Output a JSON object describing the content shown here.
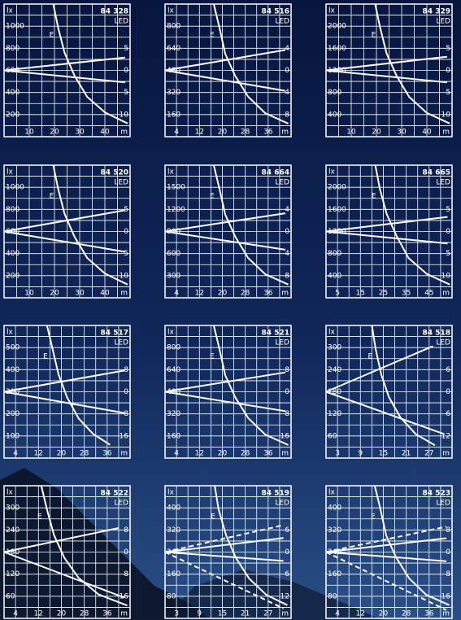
{
  "chart_data": [
    {
      "type": "line",
      "title": "84 328",
      "subtitle": "LED",
      "ylabel": "lx",
      "xlabel": "m",
      "grid": "minor",
      "xlim": [
        0,
        50
      ],
      "xticks": [
        10,
        20,
        30,
        40
      ],
      "ylim": [
        0,
        1200
      ],
      "yticks": [
        200,
        400,
        600,
        800,
        1000
      ],
      "y2lim": [
        -15,
        15
      ],
      "y2ticks": [
        5,
        0,
        {
          "value": -5,
          "label": "5"
        },
        {
          "value": -10,
          "label": "10"
        }
      ],
      "series": [
        {
          "name": "E",
          "color": "#ffffff",
          "x": [
            19.5,
            21.5,
            24,
            28,
            33,
            40,
            49
          ],
          "values": [
            1200,
            980,
            760,
            550,
            360,
            220,
            120
          ]
        },
        {
          "color": "#ffffff",
          "axis": "y2",
          "x": [
            0,
            48
          ],
          "values": [
            0,
            2.9
          ]
        },
        {
          "color": "#ffffff",
          "axis": "y2",
          "x": [
            0,
            48
          ],
          "values": [
            0,
            -2.7
          ]
        }
      ]
    },
    {
      "type": "line",
      "title": "84 516",
      "subtitle": "LED",
      "ylabel": "lx",
      "xlabel": "m",
      "grid": "minor",
      "xlim": [
        0,
        44
      ],
      "xticks": [
        4,
        12,
        20,
        28,
        36
      ],
      "ylim": [
        0,
        960
      ],
      "yticks": [
        160,
        320,
        480,
        640,
        800
      ],
      "y2lim": [
        -12,
        12
      ],
      "y2ticks": [
        4,
        0,
        {
          "value": -4,
          "label": "4"
        },
        {
          "value": -8,
          "label": "8"
        }
      ],
      "series": [
        {
          "name": "E",
          "color": "#ffffff",
          "x": [
            17,
            19,
            21,
            24.5,
            29,
            35,
            43
          ],
          "values": [
            960,
            790,
            600,
            440,
            290,
            170,
            95
          ]
        },
        {
          "color": "#ffffff",
          "axis": "y2",
          "x": [
            0,
            42
          ],
          "values": [
            0,
            3.7
          ]
        },
        {
          "color": "#ffffff",
          "axis": "y2",
          "x": [
            0,
            42
          ],
          "values": [
            0,
            -3.7
          ]
        }
      ]
    },
    {
      "type": "line",
      "title": "84 329",
      "subtitle": "LED",
      "ylabel": "lx",
      "xlabel": "m",
      "grid": "minor",
      "xlim": [
        0,
        50
      ],
      "xticks": [
        10,
        20,
        30,
        40
      ],
      "ylim": [
        0,
        2400
      ],
      "yticks": [
        400,
        800,
        1200,
        1600,
        2000
      ],
      "y2lim": [
        -15,
        15
      ],
      "y2ticks": [
        5,
        0,
        {
          "value": -5,
          "label": "5"
        },
        {
          "value": -10,
          "label": "10"
        }
      ],
      "series": [
        {
          "name": "E",
          "color": "#ffffff",
          "x": [
            19.5,
            21.5,
            24,
            28,
            33,
            40,
            49
          ],
          "values": [
            2400,
            1970,
            1510,
            1100,
            720,
            430,
            240
          ]
        },
        {
          "color": "#ffffff",
          "axis": "y2",
          "x": [
            0,
            48
          ],
          "values": [
            0,
            3.1
          ]
        },
        {
          "color": "#ffffff",
          "axis": "y2",
          "x": [
            0,
            48
          ],
          "values": [
            0,
            -2.7
          ]
        }
      ]
    },
    {
      "type": "line",
      "title": "84 520",
      "subtitle": "LED",
      "ylabel": "lx",
      "xlabel": "m",
      "grid": "minor",
      "xlim": [
        0,
        50
      ],
      "xticks": [
        10,
        20,
        30,
        40
      ],
      "ylim": [
        0,
        1200
      ],
      "yticks": [
        200,
        400,
        600,
        800,
        1000
      ],
      "y2lim": [
        -15,
        15
      ],
      "y2ticks": [
        5,
        0,
        {
          "value": -5,
          "label": "5"
        },
        {
          "value": -10,
          "label": "10"
        }
      ],
      "series": [
        {
          "name": "E",
          "color": "#ffffff",
          "x": [
            19.5,
            21.5,
            24,
            28,
            33,
            40,
            49
          ],
          "values": [
            1200,
            980,
            760,
            550,
            360,
            220,
            120
          ]
        },
        {
          "color": "#ffffff",
          "axis": "y2",
          "x": [
            0,
            48
          ],
          "values": [
            0,
            4.8
          ]
        },
        {
          "color": "#ffffff",
          "axis": "y2",
          "x": [
            0,
            48
          ],
          "values": [
            0,
            -4.6
          ]
        }
      ]
    },
    {
      "type": "line",
      "title": "84 664",
      "subtitle": "LED",
      "ylabel": "lx",
      "xlabel": "m",
      "grid": "minor",
      "xlim": [
        0,
        44
      ],
      "xticks": [
        4,
        12,
        20,
        28,
        36
      ],
      "ylim": [
        0,
        1800
      ],
      "yticks": [
        300,
        600,
        900,
        1200,
        1500
      ],
      "y2lim": [
        -12,
        12
      ],
      "y2ticks": [
        4,
        0,
        {
          "value": -4,
          "label": "4"
        },
        {
          "value": -8,
          "label": "8"
        }
      ],
      "series": [
        {
          "name": "E",
          "color": "#ffffff",
          "x": [
            17,
            19,
            21,
            24.5,
            29,
            35,
            43
          ],
          "values": [
            1800,
            1480,
            1130,
            830,
            540,
            320,
            180
          ]
        },
        {
          "color": "#ffffff",
          "axis": "y2",
          "x": [
            0,
            42
          ],
          "values": [
            0,
            3.3
          ]
        },
        {
          "color": "#ffffff",
          "axis": "y2",
          "x": [
            0,
            42
          ],
          "values": [
            0,
            -3.3
          ]
        }
      ]
    },
    {
      "type": "line",
      "title": "84 665",
      "subtitle": "LED",
      "ylabel": "lx",
      "xlabel": "m",
      "grid": "minor",
      "xlim": [
        0,
        55
      ],
      "xticks": [
        5,
        15,
        25,
        35,
        45
      ],
      "ylim": [
        0,
        2400
      ],
      "yticks": [
        400,
        800,
        1200,
        1600,
        2000
      ],
      "y2lim": [
        -15,
        15
      ],
      "y2ticks": [
        5,
        0,
        {
          "value": -5,
          "label": "5"
        },
        {
          "value": -10,
          "label": "10"
        }
      ],
      "series": [
        {
          "name": "E",
          "color": "#ffffff",
          "x": [
            21.5,
            23.5,
            26.5,
            31,
            36,
            44,
            54
          ],
          "values": [
            2400,
            1970,
            1510,
            1100,
            720,
            430,
            240
          ]
        },
        {
          "color": "#ffffff",
          "axis": "y2",
          "x": [
            0,
            53
          ],
          "values": [
            0,
            3.3
          ]
        },
        {
          "color": "#ffffff",
          "axis": "y2",
          "x": [
            0,
            53
          ],
          "values": [
            0,
            -2.7
          ]
        }
      ]
    },
    {
      "type": "line",
      "title": "84 517",
      "subtitle": "LED",
      "ylabel": "lx",
      "xlabel": "m",
      "grid": "minor",
      "xlim": [
        0,
        44
      ],
      "xticks": [
        4,
        12,
        20,
        28,
        36
      ],
      "ylim": [
        0,
        600
      ],
      "yticks": [
        100,
        200,
        300,
        400,
        500
      ],
      "y2lim": [
        -24,
        24
      ],
      "y2ticks": [
        8,
        0,
        {
          "value": -8,
          "label": "8"
        },
        {
          "value": -16,
          "label": "16"
        }
      ],
      "series": [
        {
          "name": "E",
          "color": "#ffffff",
          "x": [
            15,
            17,
            19,
            22,
            26,
            31,
            37
          ],
          "values": [
            600,
            490,
            380,
            275,
            180,
            110,
            60
          ]
        },
        {
          "color": "#ffffff",
          "axis": "y2",
          "x": [
            0,
            42
          ],
          "values": [
            0,
            7.7
          ]
        },
        {
          "color": "#ffffff",
          "axis": "y2",
          "x": [
            0,
            42
          ],
          "values": [
            0,
            -7.7
          ]
        }
      ]
    },
    {
      "type": "line",
      "title": "84 521",
      "subtitle": "LED",
      "ylabel": "lx",
      "xlabel": "m",
      "grid": "minor",
      "xlim": [
        0,
        44
      ],
      "xticks": [
        4,
        12,
        20,
        28,
        36
      ],
      "ylim": [
        0,
        960
      ],
      "yticks": [
        160,
        320,
        480,
        640,
        800
      ],
      "y2lim": [
        -24,
        24
      ],
      "y2ticks": [
        8,
        0,
        {
          "value": -8,
          "label": "8"
        },
        {
          "value": -16,
          "label": "16"
        }
      ],
      "series": [
        {
          "name": "E",
          "color": "#ffffff",
          "x": [
            17,
            19,
            21,
            24.5,
            29,
            35,
            43
          ],
          "values": [
            960,
            790,
            600,
            440,
            290,
            170,
            95
          ]
        },
        {
          "color": "#ffffff",
          "axis": "y2",
          "x": [
            0,
            42
          ],
          "values": [
            0,
            7
          ]
        },
        {
          "color": "#ffffff",
          "axis": "y2",
          "x": [
            0,
            42
          ],
          "values": [
            0,
            -7
          ]
        }
      ]
    },
    {
      "type": "line",
      "title": "84 518",
      "subtitle": "LED",
      "ylabel": "lx",
      "xlabel": "m",
      "grid": "minor",
      "xlim": [
        0,
        33
      ],
      "xticks": [
        3,
        9,
        15,
        21,
        27
      ],
      "ylim": [
        0,
        360
      ],
      "yticks": [
        60,
        120,
        180,
        240,
        300
      ],
      "y2lim": [
        -18,
        18
      ],
      "y2ticks": [
        6,
        0,
        {
          "value": -6,
          "label": "6"
        },
        {
          "value": -12,
          "label": "12"
        }
      ],
      "series": [
        {
          "name": "E",
          "color": "#ffffff",
          "x": [
            12,
            13,
            14.5,
            16.5,
            19.5,
            23.5,
            28.5
          ],
          "values": [
            360,
            295,
            225,
            165,
            110,
            65,
            35
          ]
        },
        {
          "color": "#ffffff",
          "axis": "y2",
          "x": [
            0,
            28
          ],
          "values": [
            0,
            12.4
          ]
        },
        {
          "color": "#ffffff",
          "axis": "y2",
          "x": [
            0,
            31
          ],
          "values": [
            0,
            -11.5
          ]
        }
      ]
    },
    {
      "type": "line",
      "title": "84 522",
      "subtitle": "LED",
      "ylabel": "lx",
      "xlabel": "m",
      "grid": "minor",
      "xlim": [
        0,
        44
      ],
      "xticks": [
        4,
        12,
        20,
        28,
        36
      ],
      "ylim": [
        0,
        360
      ],
      "yticks": [
        60,
        120,
        180,
        240,
        300
      ],
      "y2lim": [
        -24,
        24
      ],
      "y2ticks": [
        8,
        0,
        {
          "value": -8,
          "label": "8"
        },
        {
          "value": -16,
          "label": "16"
        }
      ],
      "series": [
        {
          "name": "E",
          "color": "#ffffff",
          "x": [
            13,
            15,
            17.5,
            21,
            26,
            33,
            43
          ],
          "values": [
            360,
            295,
            225,
            165,
            110,
            65,
            35
          ]
        },
        {
          "color": "#ffffff",
          "axis": "y2",
          "x": [
            0,
            40
          ],
          "values": [
            0,
            8.7
          ]
        },
        {
          "color": "#ffffff",
          "axis": "y2",
          "x": [
            0,
            42
          ],
          "values": [
            0,
            -16.5
          ]
        }
      ]
    },
    {
      "type": "line",
      "title": "84 519",
      "subtitle": "LED",
      "ylabel": "lx",
      "xlabel": "m",
      "grid": "minor",
      "xlim": [
        0,
        33
      ],
      "xticks": [
        3,
        9,
        15,
        21,
        27
      ],
      "ylim": [
        0,
        480
      ],
      "yticks": [
        80,
        160,
        240,
        320,
        400
      ],
      "y2lim": [
        -18,
        18
      ],
      "y2ticks": [
        6,
        0,
        {
          "value": -6,
          "label": "6"
        },
        {
          "value": -12,
          "label": "12"
        }
      ],
      "series": [
        {
          "name": "E",
          "color": "#ffffff",
          "x": [
            13,
            14,
            16,
            18.5,
            22,
            26.5,
            32
          ],
          "values": [
            480,
            395,
            300,
            220,
            145,
            85,
            48
          ]
        },
        {
          "color": "#ffffff",
          "axis": "y2",
          "x": [
            0,
            31
          ],
          "values": [
            0,
            3.8
          ]
        },
        {
          "color": "#ffffff",
          "axis": "y2",
          "x": [
            0,
            31
          ],
          "values": [
            0,
            -2.4
          ]
        },
        {
          "color": "#ffffff",
          "axis": "y2",
          "dash": true,
          "x": [
            0,
            31
          ],
          "values": [
            0,
            7.3
          ]
        },
        {
          "color": "#ffffff",
          "axis": "y2",
          "dash": true,
          "x": [
            0,
            31
          ],
          "values": [
            0,
            -15.3
          ]
        }
      ]
    },
    {
      "type": "line",
      "title": "84 523",
      "subtitle": "LED",
      "ylabel": "lx",
      "xlabel": "m",
      "grid": "minor",
      "xlim": [
        0,
        44
      ],
      "xticks": [
        4,
        12,
        20,
        28,
        36
      ],
      "ylim": [
        0,
        480
      ],
      "yticks": [
        80,
        160,
        240,
        320,
        400
      ],
      "y2lim": [
        -24,
        24
      ],
      "y2ticks": [
        8,
        0,
        {
          "value": -8,
          "label": "8"
        },
        {
          "value": -16,
          "label": "16"
        }
      ],
      "series": [
        {
          "name": "E",
          "color": "#ffffff",
          "x": [
            17,
            19,
            21,
            24.5,
            29,
            35,
            43
          ],
          "values": [
            480,
            395,
            300,
            220,
            145,
            85,
            48
          ]
        },
        {
          "color": "#ffffff",
          "axis": "y2",
          "x": [
            0,
            42
          ],
          "values": [
            0,
            5
          ]
        },
        {
          "color": "#ffffff",
          "axis": "y2",
          "x": [
            0,
            42
          ],
          "values": [
            0,
            -3.3
          ]
        },
        {
          "color": "#ffffff",
          "axis": "y2",
          "dash": true,
          "x": [
            0,
            42
          ],
          "values": [
            0,
            9.2
          ]
        },
        {
          "color": "#ffffff",
          "axis": "y2",
          "dash": true,
          "x": [
            0,
            42
          ],
          "values": [
            0,
            -21
          ]
        }
      ]
    }
  ]
}
